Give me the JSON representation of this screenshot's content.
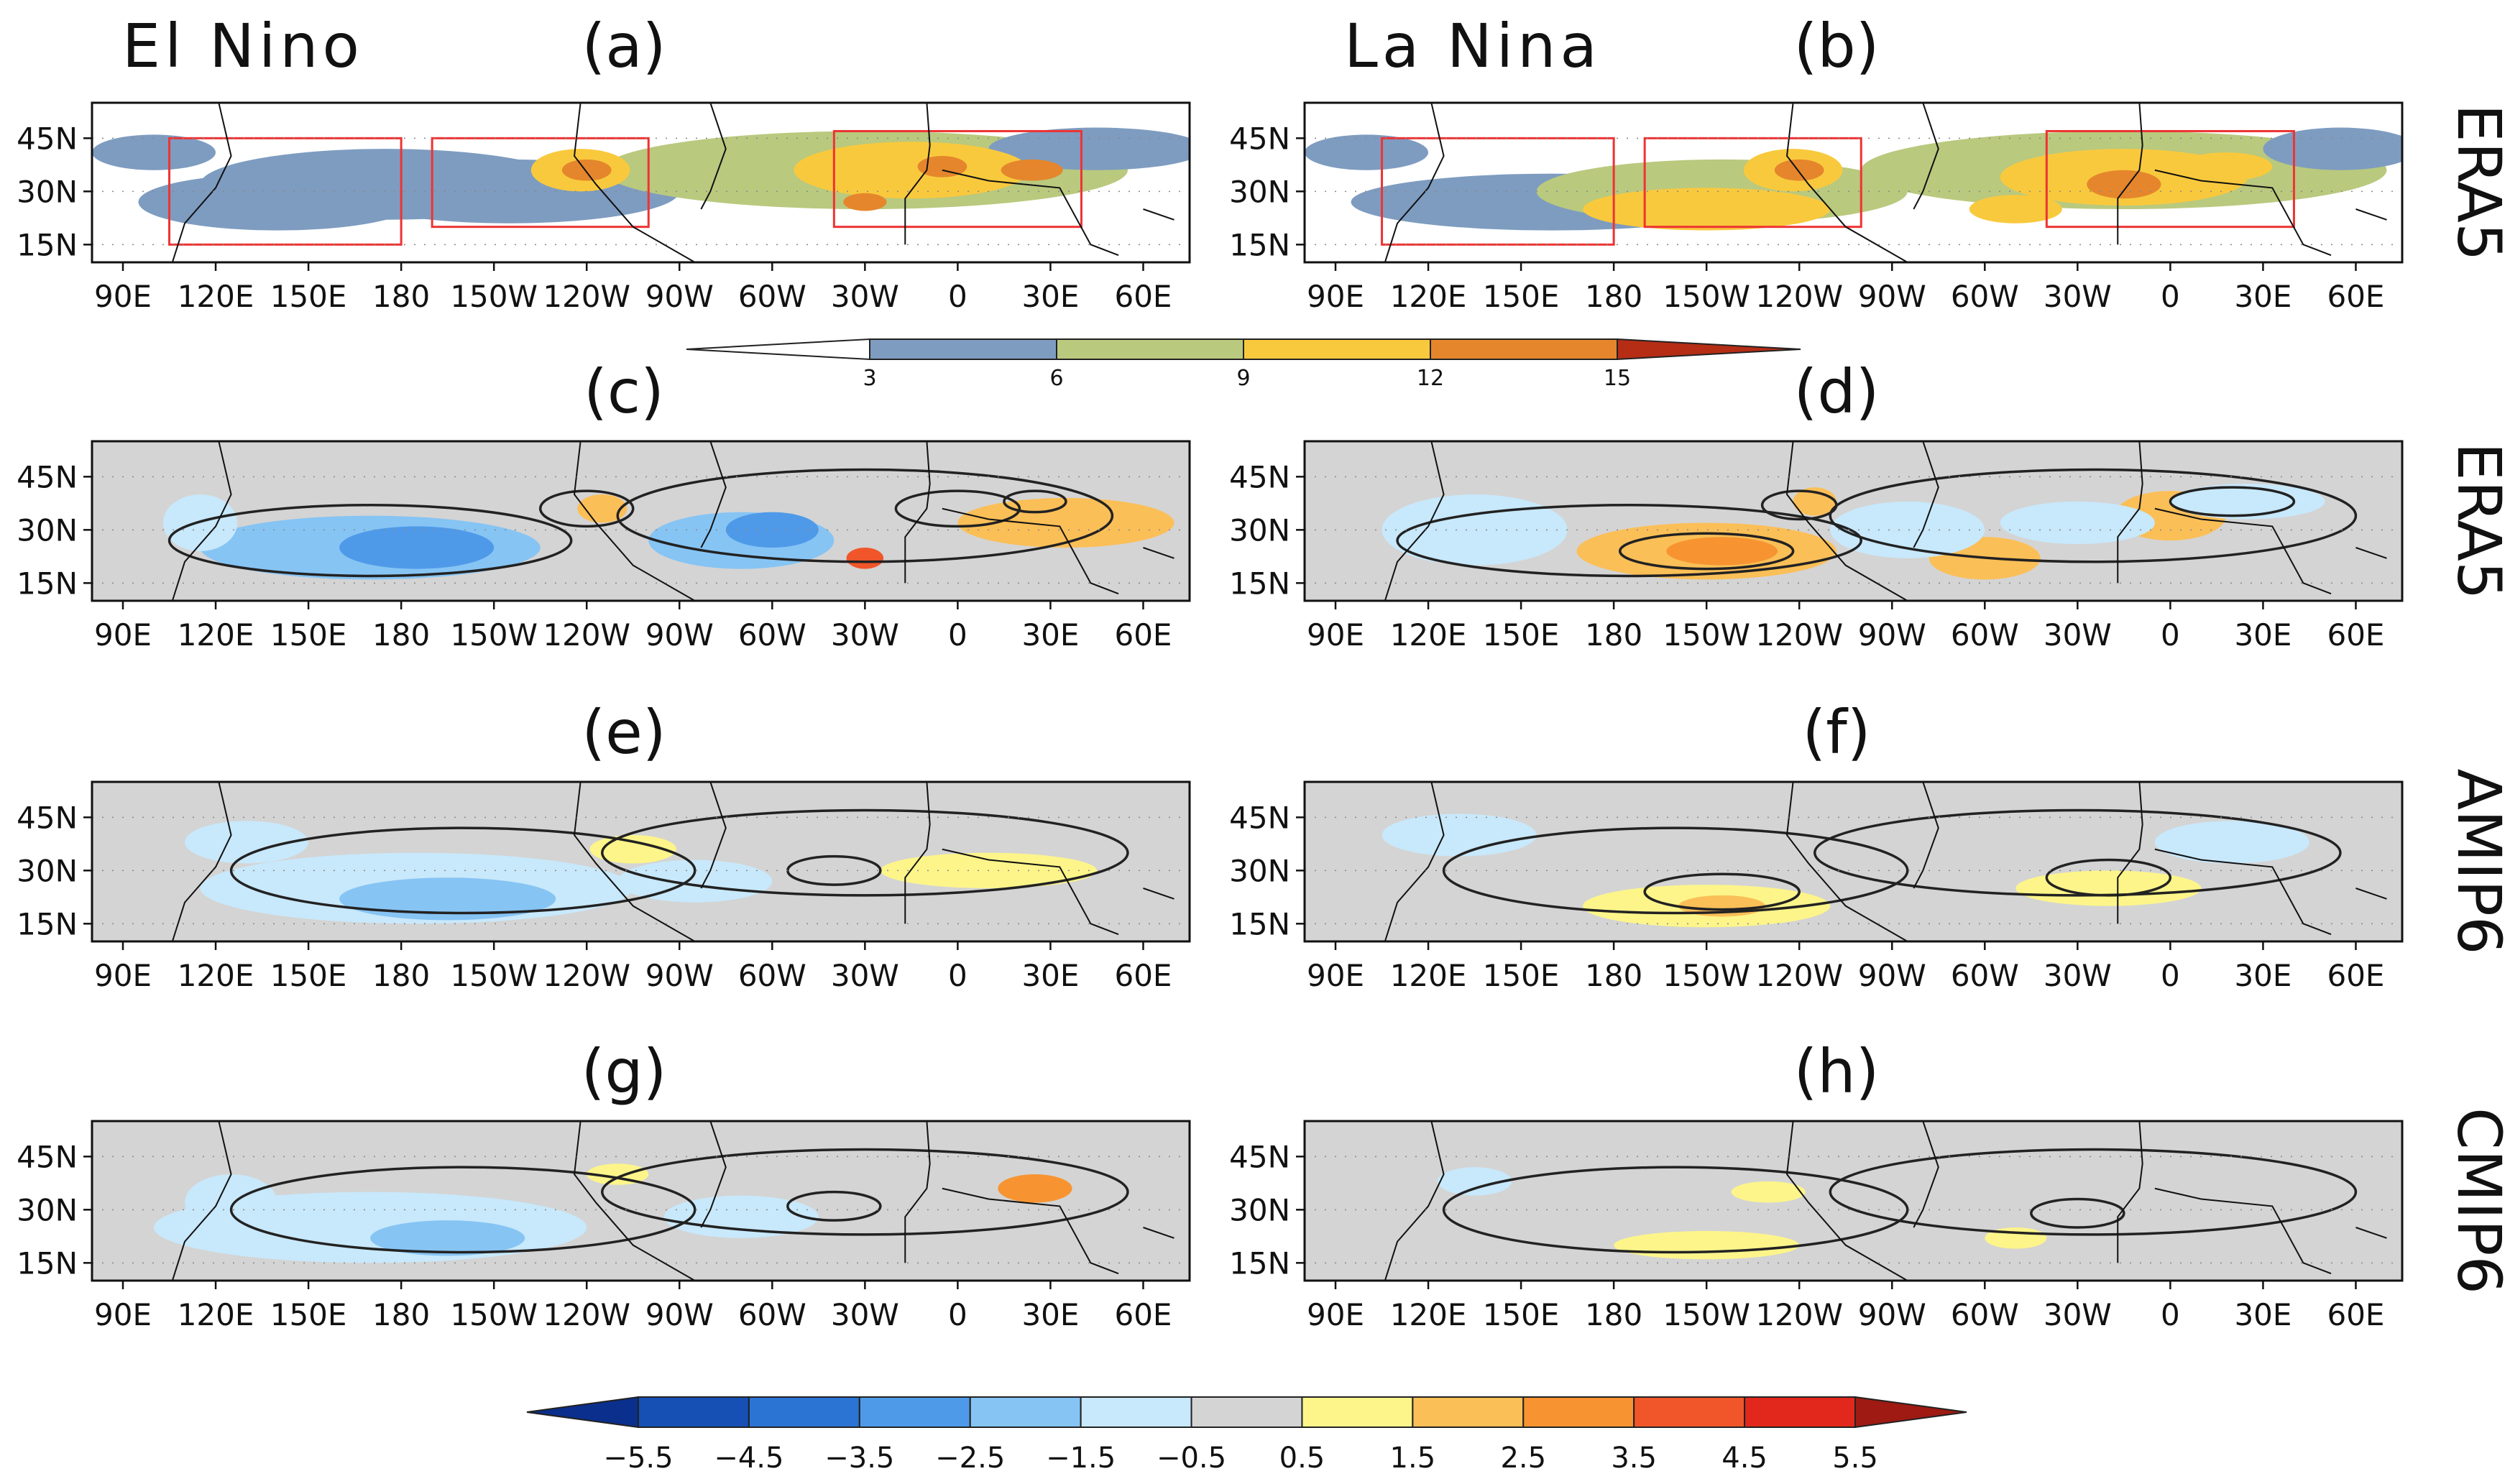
{
  "chart_data": {
    "type": "heatmap",
    "title_left": "El Nino",
    "title_right": "La Nina",
    "longitude_ticks": [
      "90E",
      "120E",
      "150E",
      "180",
      "150W",
      "120W",
      "90W",
      "60W",
      "30W",
      "0",
      "30E",
      "60E"
    ],
    "latitude_ticks": [
      "45N",
      "30N",
      "15N"
    ],
    "extent": {
      "lon": [
        80,
        435
      ],
      "lat": [
        10,
        55
      ]
    },
    "row_labels": [
      "ERA5",
      "ERA5",
      "AMIP6",
      "CMIP6"
    ],
    "panels": [
      {
        "id": "a",
        "label": "(a)",
        "dataset": "ERA5",
        "phase": "El Nino",
        "kind": "climatology",
        "blobs": [
          {
            "lon": 140,
            "lat": 27,
            "rlon": 45,
            "rlat": 8,
            "value": 4
          },
          {
            "lon": 215,
            "lat": 30,
            "rlon": 55,
            "rlat": 9,
            "value": 5
          },
          {
            "lon": 330,
            "lat": 36,
            "rlon": 85,
            "rlat": 11,
            "value": 6
          },
          {
            "lon": 100,
            "lat": 41,
            "rlon": 20,
            "rlat": 5,
            "value": 4
          },
          {
            "lon": 405,
            "lat": 42,
            "rlon": 35,
            "rlat": 6,
            "value": 4
          },
          {
            "lon": 175,
            "lat": 32,
            "rlon": 60,
            "rlat": 10,
            "value": 4
          },
          {
            "lon": 238,
            "lat": 36,
            "rlon": 16,
            "rlat": 6,
            "value": 10
          },
          {
            "lon": 240,
            "lat": 36,
            "rlon": 8,
            "rlat": 3,
            "value": 13.5
          },
          {
            "lon": 345,
            "lat": 36,
            "rlon": 38,
            "rlat": 8,
            "value": 9
          },
          {
            "lon": 352,
            "lat": 36,
            "rlon": 26,
            "rlat": 5,
            "value": 10.5
          },
          {
            "lon": 355,
            "lat": 37,
            "rlon": 8,
            "rlat": 3,
            "value": 13.5
          },
          {
            "lon": 384,
            "lat": 36,
            "rlon": 10,
            "rlat": 3,
            "value": 13.5
          },
          {
            "lon": 330,
            "lat": 27,
            "rlon": 7,
            "rlat": 2.5,
            "value": 13.5
          }
        ],
        "boxes": [
          [
            105,
            180,
            15,
            45
          ],
          [
            190,
            260,
            20,
            45
          ],
          [
            320,
            400,
            20,
            47
          ]
        ]
      },
      {
        "id": "b",
        "label": "(b)",
        "dataset": "ERA5",
        "phase": "La Nina",
        "kind": "climatology",
        "blobs": [
          {
            "lon": 160,
            "lat": 27,
            "rlon": 65,
            "rlat": 8,
            "value": 5
          },
          {
            "lon": 215,
            "lat": 30,
            "rlon": 60,
            "rlat": 9,
            "value": 6
          },
          {
            "lon": 345,
            "lat": 36,
            "rlon": 85,
            "rlat": 11,
            "value": 6
          },
          {
            "lon": 100,
            "lat": 41,
            "rlon": 20,
            "rlat": 5,
            "value": 4
          },
          {
            "lon": 415,
            "lat": 42,
            "rlon": 25,
            "rlat": 6,
            "value": 4
          },
          {
            "lon": 210,
            "lat": 25,
            "rlon": 40,
            "rlat": 6,
            "value": 10
          },
          {
            "lon": 238,
            "lat": 36,
            "rlon": 16,
            "rlat": 6,
            "value": 10
          },
          {
            "lon": 240,
            "lat": 36,
            "rlon": 8,
            "rlat": 3,
            "value": 13.5
          },
          {
            "lon": 345,
            "lat": 34,
            "rlon": 40,
            "rlat": 8,
            "value": 10
          },
          {
            "lon": 345,
            "lat": 32,
            "rlon": 12,
            "rlat": 4,
            "value": 13.5
          },
          {
            "lon": 378,
            "lat": 37,
            "rlon": 15,
            "rlat": 4,
            "value": 10.5
          },
          {
            "lon": 310,
            "lat": 25,
            "rlon": 15,
            "rlat": 4,
            "value": 10
          }
        ],
        "boxes": [
          [
            105,
            180,
            15,
            45
          ],
          [
            190,
            260,
            20,
            45
          ],
          [
            320,
            400,
            20,
            47
          ]
        ]
      },
      {
        "id": "c",
        "label": "(c)",
        "dataset": "ERA5",
        "phase": "El Nino",
        "kind": "anomaly",
        "blobs": [
          {
            "lon": 170,
            "lat": 25,
            "rlon": 55,
            "rlat": 9,
            "value": -2
          },
          {
            "lon": 185,
            "lat": 25,
            "rlon": 25,
            "rlat": 6,
            "value": -3
          },
          {
            "lon": 290,
            "lat": 27,
            "rlon": 30,
            "rlat": 8,
            "value": -2
          },
          {
            "lon": 300,
            "lat": 30,
            "rlon": 15,
            "rlat": 5,
            "value": -3
          },
          {
            "lon": 115,
            "lat": 32,
            "rlon": 12,
            "rlat": 8,
            "value": -1
          },
          {
            "lon": 395,
            "lat": 32,
            "rlon": 35,
            "rlat": 7,
            "value": 2
          },
          {
            "lon": 330,
            "lat": 22,
            "rlon": 6,
            "rlat": 3,
            "value": 4
          },
          {
            "lon": 245,
            "lat": 36,
            "rlon": 8,
            "rlat": 4,
            "value": 2
          }
        ],
        "contours": [
          {
            "lon": 170,
            "lat": 27,
            "rlon": 65,
            "rlat": 10
          },
          {
            "lon": 330,
            "lat": 34,
            "rlon": 80,
            "rlat": 13
          },
          {
            "lon": 240,
            "lat": 36,
            "rlon": 15,
            "rlat": 5
          },
          {
            "lon": 360,
            "lat": 36,
            "rlon": 20,
            "rlat": 5
          },
          {
            "lon": 385,
            "lat": 38,
            "rlon": 10,
            "rlat": 3
          }
        ]
      },
      {
        "id": "d",
        "label": "(d)",
        "dataset": "ERA5",
        "phase": "La Nina",
        "kind": "anomaly",
        "blobs": [
          {
            "lon": 210,
            "lat": 24,
            "rlon": 42,
            "rlat": 8,
            "value": 2
          },
          {
            "lon": 215,
            "lat": 24,
            "rlon": 18,
            "rlat": 4,
            "value": 3
          },
          {
            "lon": 300,
            "lat": 22,
            "rlon": 18,
            "rlat": 6,
            "value": 2
          },
          {
            "lon": 360,
            "lat": 34,
            "rlon": 18,
            "rlat": 7,
            "value": 2
          },
          {
            "lon": 135,
            "lat": 30,
            "rlon": 30,
            "rlat": 10,
            "value": -1
          },
          {
            "lon": 275,
            "lat": 30,
            "rlon": 25,
            "rlat": 8,
            "value": -1
          },
          {
            "lon": 330,
            "lat": 32,
            "rlon": 25,
            "rlat": 6,
            "value": -1
          },
          {
            "lon": 385,
            "lat": 38,
            "rlon": 25,
            "rlat": 5,
            "value": -1
          },
          {
            "lon": 245,
            "lat": 38,
            "rlon": 7,
            "rlat": 4,
            "value": 2
          }
        ],
        "contours": [
          {
            "lon": 185,
            "lat": 27,
            "rlon": 75,
            "rlat": 10
          },
          {
            "lon": 335,
            "lat": 34,
            "rlon": 85,
            "rlat": 13
          },
          {
            "lon": 210,
            "lat": 24,
            "rlon": 28,
            "rlat": 5
          },
          {
            "lon": 240,
            "lat": 37,
            "rlon": 12,
            "rlat": 4
          },
          {
            "lon": 380,
            "lat": 38,
            "rlon": 20,
            "rlat": 4
          }
        ]
      },
      {
        "id": "e",
        "label": "(e)",
        "dataset": "AMIP6",
        "phase": "El Nino",
        "kind": "anomaly",
        "blobs": [
          {
            "lon": 185,
            "lat": 25,
            "rlon": 70,
            "rlat": 10,
            "value": -1
          },
          {
            "lon": 195,
            "lat": 22,
            "rlon": 35,
            "rlat": 6,
            "value": -2
          },
          {
            "lon": 275,
            "lat": 27,
            "rlon": 25,
            "rlat": 6,
            "value": -1
          },
          {
            "lon": 255,
            "lat": 36,
            "rlon": 14,
            "rlat": 4,
            "value": 1
          },
          {
            "lon": 370,
            "lat": 30,
            "rlon": 35,
            "rlat": 5,
            "value": 1
          },
          {
            "lon": 130,
            "lat": 38,
            "rlon": 20,
            "rlat": 6,
            "value": -1
          }
        ],
        "contours": [
          {
            "lon": 200,
            "lat": 30,
            "rlon": 75,
            "rlat": 12
          },
          {
            "lon": 330,
            "lat": 35,
            "rlon": 85,
            "rlat": 12
          },
          {
            "lon": 320,
            "lat": 30,
            "rlon": 15,
            "rlat": 4
          }
        ]
      },
      {
        "id": "f",
        "label": "(f)",
        "dataset": "AMIP6",
        "phase": "La Nina",
        "kind": "anomaly",
        "blobs": [
          {
            "lon": 210,
            "lat": 20,
            "rlon": 40,
            "rlat": 6,
            "value": 1
          },
          {
            "lon": 215,
            "lat": 20,
            "rlon": 14,
            "rlat": 3,
            "value": 2
          },
          {
            "lon": 340,
            "lat": 25,
            "rlon": 30,
            "rlat": 5,
            "value": 1
          },
          {
            "lon": 130,
            "lat": 40,
            "rlon": 25,
            "rlat": 6,
            "value": -1
          },
          {
            "lon": 380,
            "lat": 38,
            "rlon": 25,
            "rlat": 6,
            "value": -1
          }
        ],
        "contours": [
          {
            "lon": 200,
            "lat": 30,
            "rlon": 75,
            "rlat": 12
          },
          {
            "lon": 330,
            "lat": 35,
            "rlon": 85,
            "rlat": 12
          },
          {
            "lon": 215,
            "lat": 24,
            "rlon": 25,
            "rlat": 5
          },
          {
            "lon": 340,
            "lat": 28,
            "rlon": 20,
            "rlat": 5
          }
        ]
      },
      {
        "id": "g",
        "label": "(g)",
        "dataset": "CMIP6",
        "phase": "El Nino",
        "kind": "anomaly",
        "blobs": [
          {
            "lon": 170,
            "lat": 25,
            "rlon": 70,
            "rlat": 10,
            "value": -1
          },
          {
            "lon": 195,
            "lat": 22,
            "rlon": 25,
            "rlat": 5,
            "value": -2
          },
          {
            "lon": 290,
            "lat": 28,
            "rlon": 25,
            "rlat": 6,
            "value": -1
          },
          {
            "lon": 385,
            "lat": 36,
            "rlon": 12,
            "rlat": 4,
            "value": 3
          },
          {
            "lon": 250,
            "lat": 40,
            "rlon": 10,
            "rlat": 3,
            "value": 1
          },
          {
            "lon": 125,
            "lat": 32,
            "rlon": 15,
            "rlat": 8,
            "value": -1
          }
        ],
        "contours": [
          {
            "lon": 200,
            "lat": 30,
            "rlon": 75,
            "rlat": 12
          },
          {
            "lon": 330,
            "lat": 35,
            "rlon": 85,
            "rlat": 12
          },
          {
            "lon": 320,
            "lat": 31,
            "rlon": 15,
            "rlat": 4
          }
        ]
      },
      {
        "id": "h",
        "label": "(h)",
        "dataset": "CMIP6",
        "phase": "La Nina",
        "kind": "anomaly",
        "blobs": [
          {
            "lon": 210,
            "lat": 20,
            "rlon": 30,
            "rlat": 4,
            "value": 1
          },
          {
            "lon": 230,
            "lat": 35,
            "rlon": 12,
            "rlat": 3,
            "value": 1
          },
          {
            "lon": 310,
            "lat": 22,
            "rlon": 10,
            "rlat": 3,
            "value": 1
          },
          {
            "lon": 135,
            "lat": 38,
            "rlon": 12,
            "rlat": 4,
            "value": -1
          }
        ],
        "contours": [
          {
            "lon": 200,
            "lat": 30,
            "rlon": 75,
            "rlat": 12
          },
          {
            "lon": 335,
            "lat": 35,
            "rlon": 85,
            "rlat": 12
          },
          {
            "lon": 330,
            "lat": 29,
            "rlon": 15,
            "rlat": 4
          }
        ]
      }
    ],
    "colorbar_climatology": {
      "labels": [
        "3",
        "6",
        "9",
        "12",
        "15"
      ],
      "colors": [
        "#ffffff",
        "#7e9cc0",
        "#b9c97e",
        "#f9c93d",
        "#e5862c",
        "#b52d15"
      ]
    },
    "colorbar_anomaly": {
      "labels": [
        "−5.5",
        "−4.5",
        "−3.5",
        "−2.5",
        "−1.5",
        "−0.5",
        "0.5",
        "1.5",
        "2.5",
        "3.5",
        "4.5",
        "5.5"
      ],
      "colors": [
        "#0a2f8c",
        "#1650b5",
        "#2c74d4",
        "#4f9ae8",
        "#86c4f4",
        "#c8e8fb",
        "#d4d4d4",
        "#fdf58a",
        "#fbbf57",
        "#f79431",
        "#f0562a",
        "#e2281d",
        "#9e1a12"
      ]
    }
  }
}
